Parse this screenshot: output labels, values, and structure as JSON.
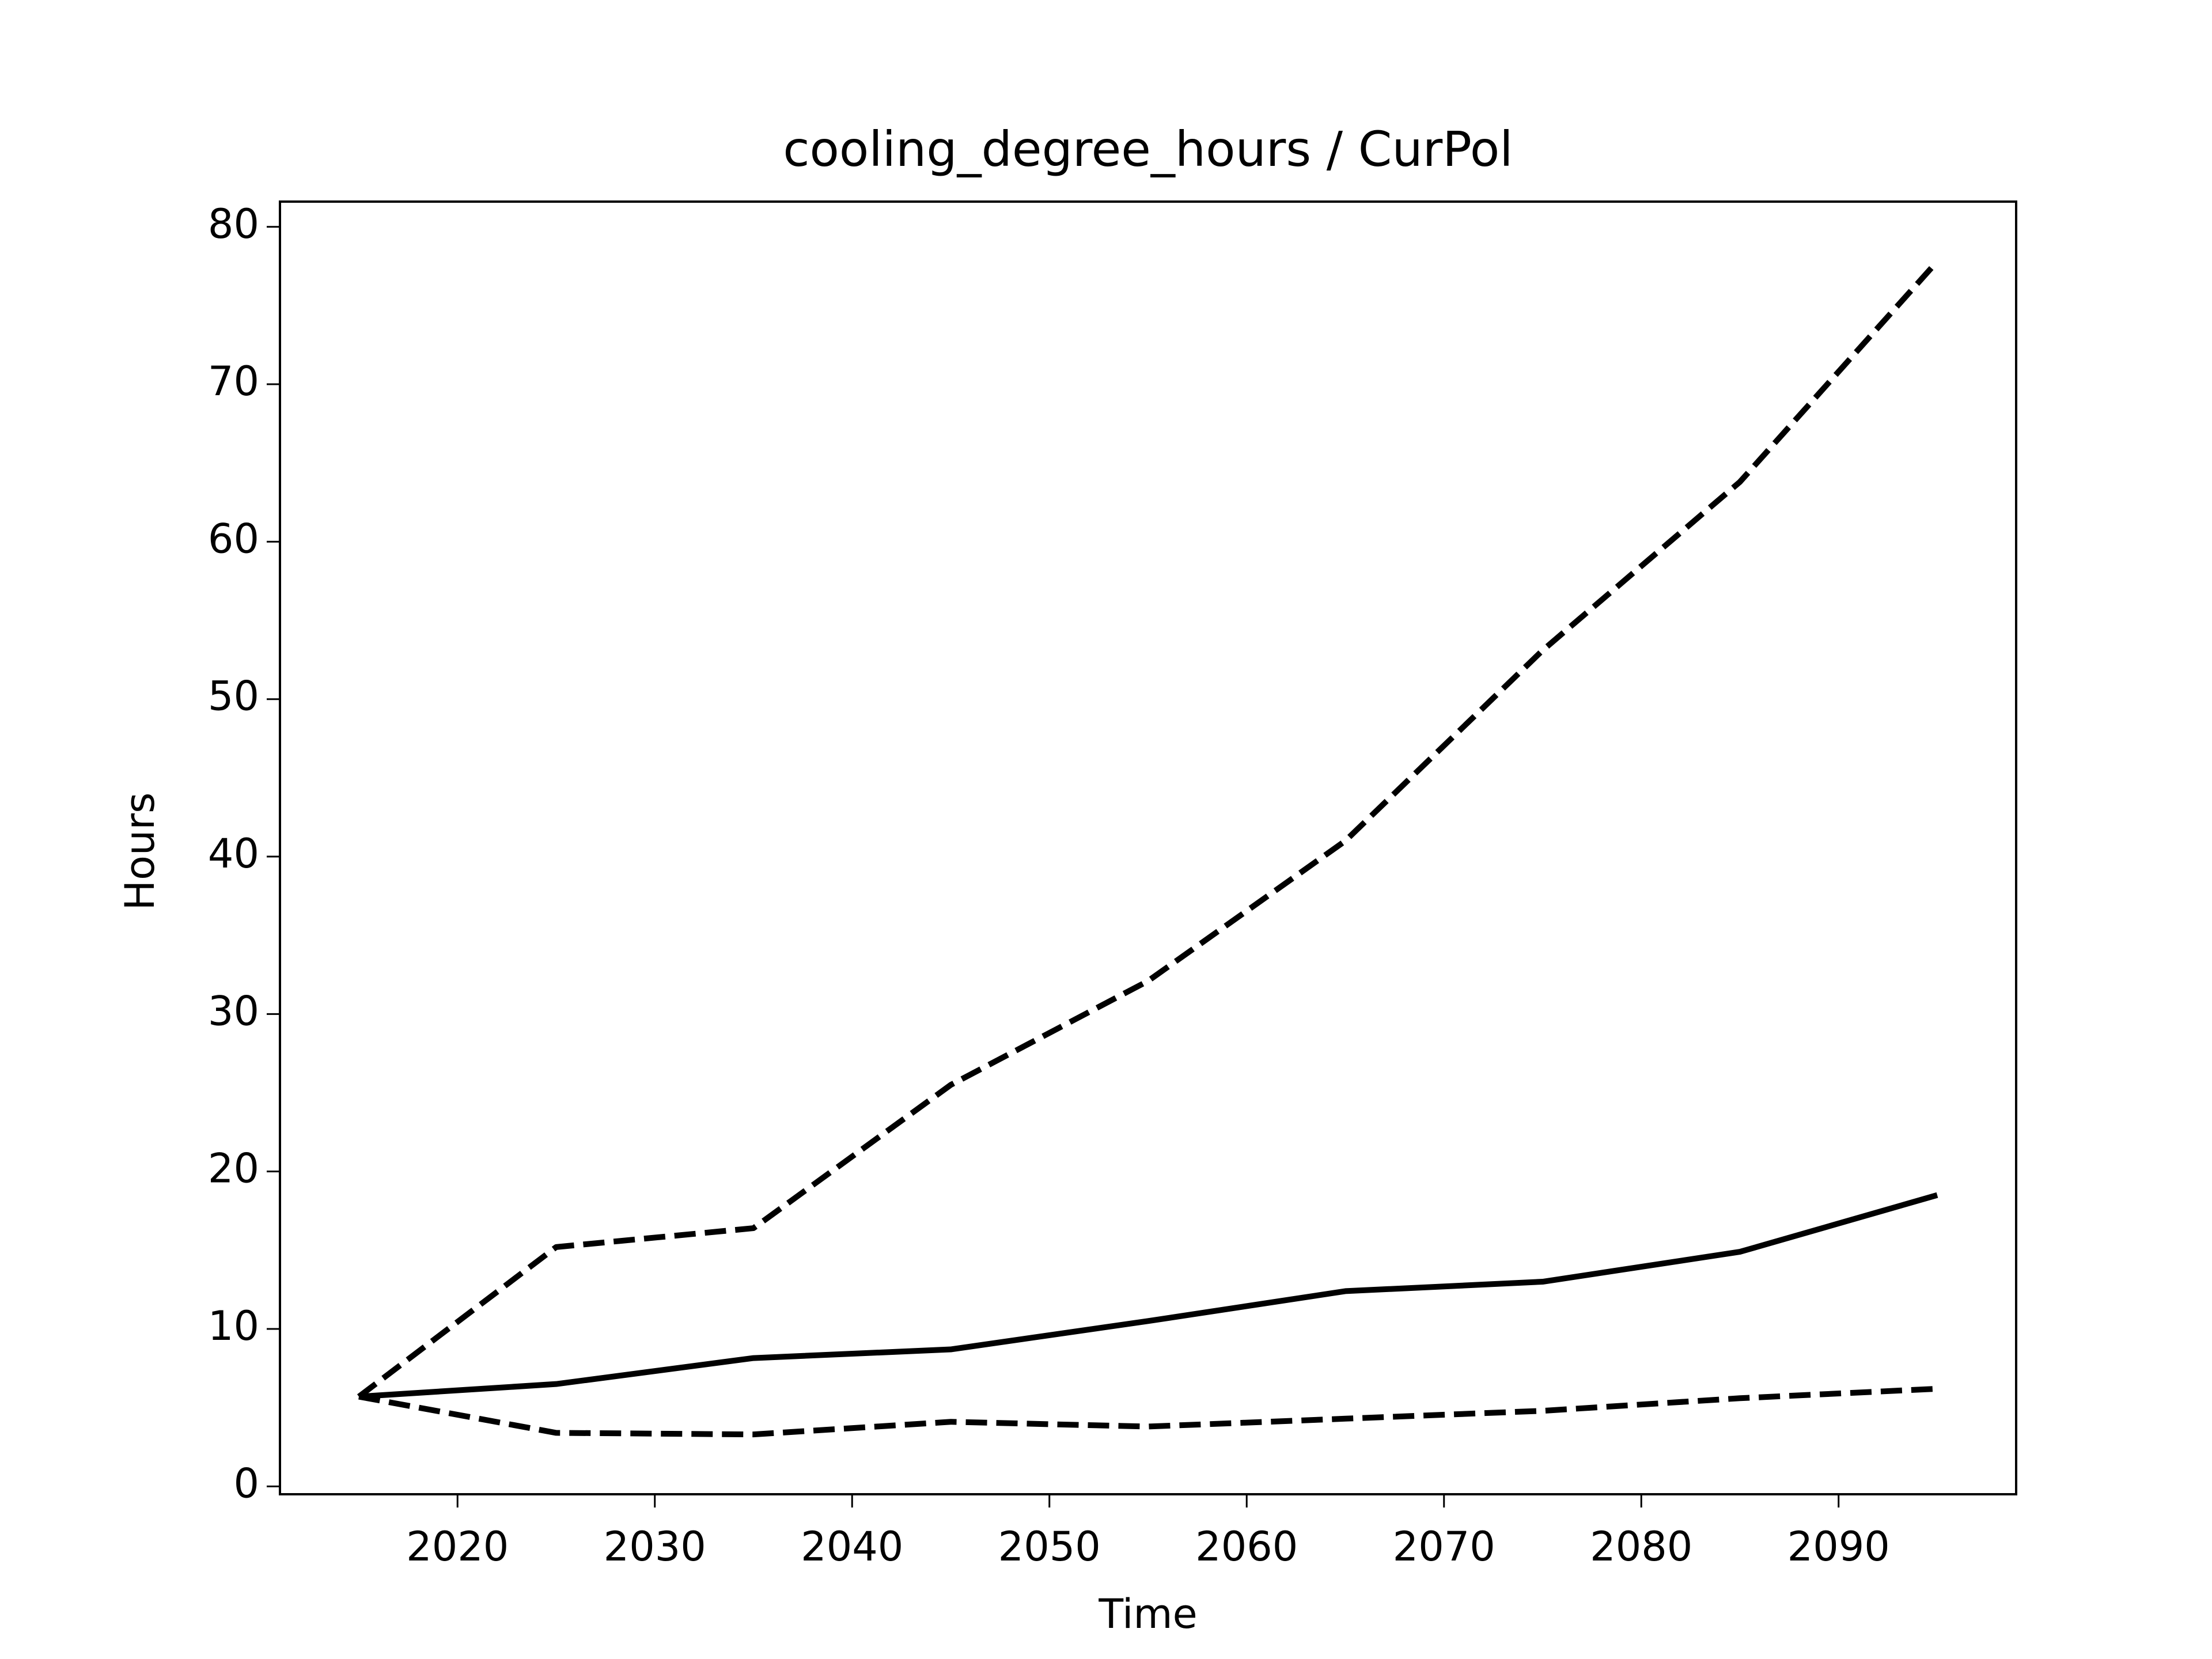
{
  "chart_data": {
    "type": "line",
    "title": "cooling_degree_hours / CurPol",
    "xlabel": "Time",
    "ylabel": "Hours",
    "x": [
      2015,
      2025,
      2035,
      2045,
      2055,
      2065,
      2075,
      2085,
      2095
    ],
    "series": [
      {
        "color": "#000000",
        "dashed": false,
        "values": [
          5.7,
          6.5,
          8.15,
          8.7,
          10.5,
          12.4,
          13.0,
          14.9,
          18.5
        ]
      },
      {
        "color": "#000000",
        "dashed": true,
        "values": [
          5.7,
          15.2,
          16.4,
          25.5,
          32.1,
          41.0,
          53.1,
          63.8,
          77.8
        ]
      },
      {
        "color": "#000000",
        "dashed": true,
        "values": [
          5.7,
          3.4,
          3.3,
          4.1,
          3.8,
          4.3,
          4.8,
          5.6,
          6.2
        ]
      }
    ],
    "xlim": [
      2011,
      2099
    ],
    "xticks": [
      2020,
      2030,
      2040,
      2050,
      2060,
      2070,
      2080,
      2090
    ],
    "ylim": [
      -0.5,
      81.6
    ],
    "yticks": [
      0,
      10,
      20,
      30,
      40,
      50,
      60,
      70,
      80
    ],
    "grid": false
  }
}
